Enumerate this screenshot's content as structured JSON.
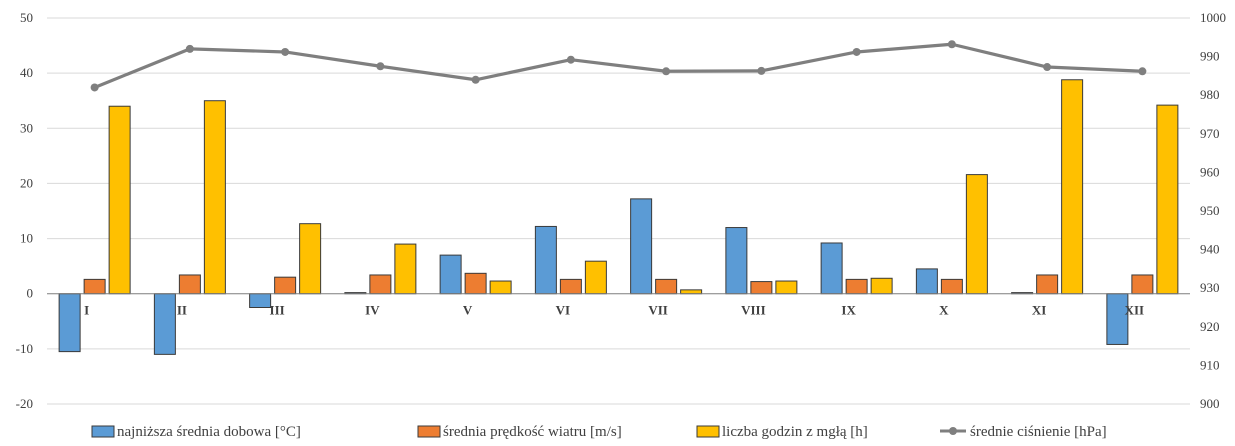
{
  "chart_data": {
    "type": "bar",
    "categories": [
      "I",
      "II",
      "III",
      "IV",
      "V",
      "VI",
      "VII",
      "VIII",
      "IX",
      "X",
      "XI",
      "XII"
    ],
    "series": [
      {
        "name": "najniższa średnia dobowa [°C]",
        "axis": "left",
        "kind": "bar",
        "color": "#5B9BD5",
        "values": [
          -10.5,
          -11,
          -2.5,
          0.2,
          7,
          12.2,
          17.2,
          12,
          9.2,
          4.5,
          0.2,
          -9.2
        ]
      },
      {
        "name": "średnia prędkość wiatru [m/s]",
        "axis": "left",
        "kind": "bar",
        "color": "#ED7D31",
        "values": [
          2.6,
          3.4,
          3.0,
          3.4,
          3.7,
          2.6,
          2.6,
          2.2,
          2.6,
          2.6,
          3.4,
          3.4
        ]
      },
      {
        "name": "liczba godzin z mgłą [h]",
        "axis": "left",
        "kind": "bar",
        "color": "#FFC000",
        "values": [
          34,
          35,
          12.7,
          9,
          2.3,
          5.9,
          0.7,
          2.3,
          2.8,
          21.6,
          38.8,
          34.2
        ]
      },
      {
        "name": "średnie ciśnienie [hPa]",
        "axis": "right",
        "kind": "line",
        "color": "#7F7F7F",
        "values": [
          982,
          992,
          991.2,
          987.5,
          984,
          989.2,
          986.2,
          986.3,
          991.2,
          993.2,
          987.3,
          986.2
        ]
      }
    ],
    "y_left": {
      "min": -20,
      "max": 50,
      "ticks": [
        -20,
        -10,
        0,
        10,
        20,
        30,
        40,
        50
      ]
    },
    "y_right": {
      "min": 900,
      "max": 1000,
      "ticks": [
        900,
        910,
        920,
        930,
        940,
        950,
        960,
        970,
        980,
        990,
        1000
      ]
    },
    "grid": true,
    "legend_position": "bottom"
  }
}
